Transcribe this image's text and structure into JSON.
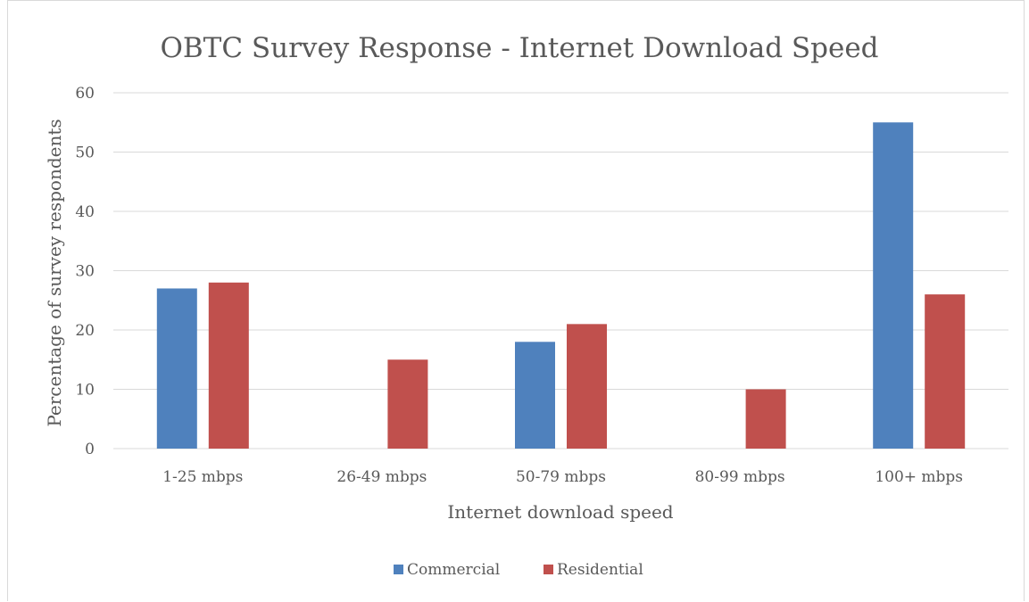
{
  "chart_data": {
    "type": "bar",
    "title": "OBTC Survey Response - Internet Download Speed",
    "xlabel": "Internet download speed",
    "ylabel": "Percentage of survey respondents",
    "categories": [
      "1-25 mbps",
      "26-49 mbps",
      "50-79 mbps",
      "80-99 mbps",
      "100+ mbps"
    ],
    "series": [
      {
        "name": "Commercial",
        "color": "#4f81bd",
        "values": [
          27,
          0,
          18,
          0,
          55
        ]
      },
      {
        "name": "Residential",
        "color": "#c0504d",
        "values": [
          28,
          15,
          21,
          10,
          26
        ]
      }
    ],
    "ylim": [
      0,
      60
    ],
    "yticks": [
      0,
      10,
      20,
      30,
      40,
      50,
      60
    ],
    "grid": true,
    "legend_position": "bottom"
  }
}
